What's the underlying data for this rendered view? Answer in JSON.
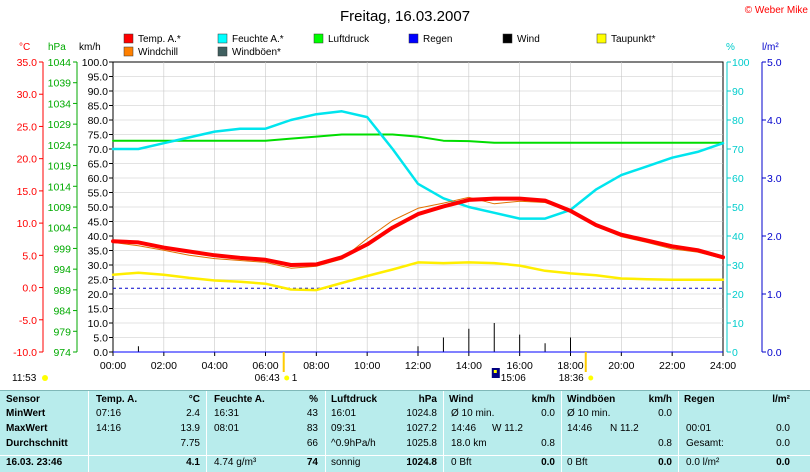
{
  "title": "Freitag, 16.03.2007",
  "credit": "© Weber Mike",
  "legend": [
    {
      "label": "Temp. A.*",
      "color": "#ff0000"
    },
    {
      "label": "Feuchte A.*",
      "color": "#00ffff"
    },
    {
      "label": "Luftdruck",
      "color": "#00ff00"
    },
    {
      "label": "Regen",
      "color": "#0000ff"
    },
    {
      "label": "Wind",
      "color": "#000000"
    },
    {
      "label": "Taupunkt*",
      "color": "#ffff00"
    },
    {
      "label": "Windchill",
      "color": "#ff8000"
    },
    {
      "label": "Windböen*",
      "color": "#406060"
    }
  ],
  "axes": {
    "temp": {
      "unit": "°C",
      "ticks": [
        "35.0",
        "30.0",
        "25.0",
        "20.0",
        "15.0",
        "10.0",
        "5.0",
        "0.0",
        "-5.0",
        "-10.0"
      ],
      "color": "#ff0000"
    },
    "pressure": {
      "unit": "hPa",
      "ticks": [
        "1044",
        "1039",
        "1034",
        "1029",
        "1024",
        "1019",
        "1014",
        "1009",
        "1004",
        "999",
        "994",
        "989",
        "984",
        "979",
        "974"
      ],
      "color": "#00aa00"
    },
    "wind": {
      "unit": "km/h",
      "ticks": [
        "100.0",
        "95.0",
        "90.0",
        "85.0",
        "80.0",
        "75.0",
        "70.0",
        "65.0",
        "60.0",
        "55.0",
        "50.0",
        "45.0",
        "40.0",
        "35.0",
        "30.0",
        "25.0",
        "20.0",
        "15.0",
        "10.0",
        "5.0",
        "0.0"
      ]
    },
    "humidity": {
      "unit": "%",
      "ticks": [
        "100",
        "90",
        "80",
        "70",
        "60",
        "50",
        "40",
        "30",
        "20",
        "10",
        "0"
      ],
      "color": "#00cccc"
    },
    "rain": {
      "unit": "l/m²",
      "ticks": [
        "5.0",
        "4.0",
        "3.0",
        "2.0",
        "1.0",
        "0.0"
      ],
      "color": "#0000cc"
    },
    "time": {
      "ticks": [
        "00:00",
        "02:00",
        "04:00",
        "06:00",
        "08:00",
        "10:00",
        "12:00",
        "14:00",
        "16:00",
        "18:00",
        "20:00",
        "22:00",
        "24:00"
      ]
    }
  },
  "markers": {
    "left_time": "11:53",
    "sunrise": "06:43",
    "sunrise_suffix": "1",
    "solar_noon": "15:06",
    "sunset": "18:36"
  },
  "chart_data": {
    "type": "line",
    "x": [
      "00:00",
      "01:00",
      "02:00",
      "03:00",
      "04:00",
      "05:00",
      "06:00",
      "07:00",
      "08:00",
      "09:00",
      "10:00",
      "11:00",
      "12:00",
      "13:00",
      "14:00",
      "15:00",
      "16:00",
      "17:00",
      "18:00",
      "19:00",
      "20:00",
      "21:00",
      "22:00",
      "23:00",
      "24:00"
    ],
    "series": [
      {
        "name": "Temp. A.*",
        "axis": "temp",
        "values": [
          7.2,
          7.0,
          6.2,
          5.6,
          5.0,
          4.6,
          4.3,
          3.5,
          3.6,
          4.7,
          6.7,
          9.3,
          11.4,
          12.6,
          13.6,
          13.8,
          13.8,
          13.5,
          11.9,
          9.7,
          8.2,
          7.3,
          6.4,
          5.8,
          4.7
        ]
      },
      {
        "name": "Feuchte A.*",
        "axis": "humidity",
        "values": [
          70,
          70,
          72,
          74,
          76,
          77,
          77,
          80,
          82,
          83,
          81,
          70,
          58,
          53,
          50,
          48,
          46,
          46,
          49,
          56,
          61,
          64,
          67,
          69,
          72
        ]
      },
      {
        "name": "Luftdruck",
        "axis": "pressure",
        "values": [
          1025.0,
          1025.0,
          1025.0,
          1025.0,
          1025.0,
          1025.0,
          1025.0,
          1025.5,
          1026.0,
          1026.5,
          1026.5,
          1026.5,
          1026.0,
          1025.0,
          1024.9,
          1024.5,
          1024.5,
          1024.5,
          1024.5,
          1024.5,
          1024.5,
          1024.5,
          1024.5,
          1024.5,
          1024.5
        ]
      },
      {
        "name": "Regen",
        "axis": "rain",
        "values": [
          0,
          0,
          0,
          0,
          0,
          0,
          0,
          0,
          0,
          0,
          0,
          0,
          0,
          0,
          0,
          0,
          0,
          0,
          0,
          0,
          0,
          0,
          0,
          0,
          0
        ]
      },
      {
        "name": "Wind",
        "axis": "wind",
        "values": [
          0.5,
          2,
          0,
          0,
          0,
          0,
          0,
          0,
          0,
          0,
          0,
          0,
          2,
          5,
          8,
          10,
          6,
          3,
          5,
          0,
          0,
          0,
          0,
          0,
          0
        ]
      },
      {
        "name": "Taupunkt*",
        "axis": "temp",
        "values": [
          2.0,
          2.3,
          2.0,
          1.5,
          1.1,
          0.9,
          0.6,
          -0.3,
          -0.4,
          0.7,
          1.8,
          2.8,
          3.9,
          3.8,
          3.9,
          3.8,
          3.4,
          2.6,
          2.2,
          1.9,
          1.4,
          1.3,
          1.2,
          1.2,
          1.2
        ]
      },
      {
        "name": "Windchill",
        "axis": "temp",
        "values": [
          7.0,
          6.5,
          5.8,
          5.0,
          4.5,
          4.2,
          3.9,
          3.0,
          3.3,
          4.4,
          7.6,
          10.4,
          12.3,
          13.1,
          14.0,
          13.0,
          13.4,
          13.2,
          11.8,
          9.5,
          7.9,
          7.0,
          6.0,
          5.5,
          4.5
        ]
      }
    ],
    "reference_line": {
      "name": "Regen baseline",
      "axis": "rain",
      "value": 1.1
    },
    "grid": true
  },
  "table": {
    "headers": [
      "Sensor",
      "Temp. A.",
      "°C",
      "Feuchte A.",
      "%",
      "Luftdruck",
      "hPa",
      "Wind",
      "km/h",
      "Windböen",
      "km/h",
      "Regen",
      "l/m²"
    ],
    "rows": [
      {
        "label": "MinWert",
        "temp_time": "07:16",
        "temp": "2.4",
        "hum_time": "16:31",
        "hum": "43",
        "press_time": "16:01",
        "press": "1024.8",
        "wind_time": "Ø 10 min.",
        "wind": "0.0",
        "gust_time": "Ø 10 min.",
        "gust": "0.0",
        "rain_time": "",
        "rain": ""
      },
      {
        "label": "MaxWert",
        "temp_time": "14:16",
        "temp": "13.9",
        "hum_time": "08:01",
        "hum": "83",
        "press_time": "09:31",
        "press": "1027.2",
        "wind_time": "14:46",
        "wind_dir": "W 11.2",
        "wind": "",
        "gust_time": "14:46",
        "gust_dir": "N 11.2",
        "gust": "",
        "rain_time": "00:01",
        "rain": "0.0"
      },
      {
        "label": "Durchschnitt",
        "temp_time": "",
        "temp": "7.75",
        "hum_time": "",
        "hum": "66",
        "press_time": "^0.9hPa/h",
        "press": "1025.8",
        "wind_time": "18.0 km",
        "wind": "0.8",
        "gust_time": "",
        "gust": "0.8",
        "rain_time": "Gesamt:",
        "rain": "0.0"
      },
      {
        "label": "16.03. 23:46",
        "temp_time": "",
        "temp": "4.1",
        "hum_time": "4.74 g/m³",
        "hum": "74",
        "press_time": "sonnig",
        "press": "1024.8",
        "wind_time": "0 Bft",
        "wind": "0.0",
        "gust_time": "0 Bft",
        "gust": "0.0",
        "rain_time": "0.0 l/m²",
        "rain": "0.0"
      }
    ]
  }
}
